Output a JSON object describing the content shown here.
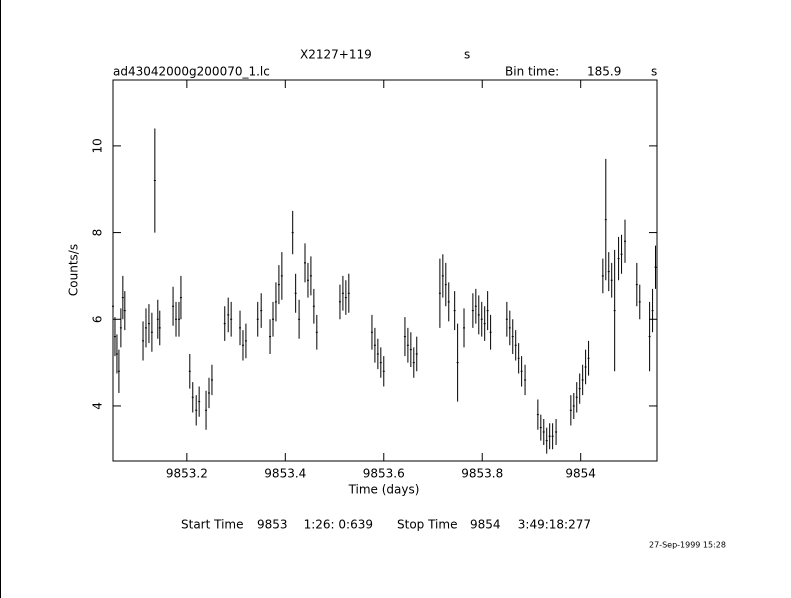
{
  "chart_data": {
    "type": "errorbar",
    "title": "X2127+119",
    "title_unit": "s",
    "subtitle": "ad43042000g200070_1.lc",
    "bin_time_label": "Bin time:",
    "bin_time": "185.9",
    "bin_time_unit": "s",
    "xlabel": "Time (days)",
    "ylabel": "Counts/s",
    "start_label": "Start Time",
    "start_day": "9853",
    "start_time": "1:26: 0:639",
    "stop_label": "Stop Time",
    "stop_day": "9854",
    "stop_time": "3:49:18:277",
    "date_stamp": "27-Sep-1999 15:28",
    "color": "#000000",
    "xlim": [
      9853.05,
      9854.155
    ],
    "ylim": [
      2.73,
      11.52
    ],
    "xticks": [
      9853.2,
      9853.4,
      9853.6,
      9853.8,
      9854
    ],
    "yticks": [
      4,
      6,
      8,
      10
    ],
    "x": [
      9853.05,
      9853.054,
      9853.058,
      9853.062,
      9853.066,
      9853.07,
      9853.074,
      9853.111,
      9853.117,
      9853.123,
      9853.129,
      9853.135,
      9853.141,
      9853.145,
      9853.172,
      9853.178,
      9853.184,
      9853.188,
      9853.206,
      9853.212,
      9853.219,
      9853.225,
      9853.239,
      9853.245,
      9853.251,
      9853.277,
      9853.284,
      9853.29,
      9853.308,
      9853.314,
      9853.32,
      9853.344,
      9853.351,
      9853.369,
      9853.375,
      9853.381,
      9853.387,
      9853.393,
      9853.415,
      9853.421,
      9853.428,
      9853.44,
      9853.446,
      9853.452,
      9853.458,
      9853.464,
      9853.511,
      9853.517,
      9853.523,
      9853.529,
      9853.576,
      9853.582,
      9853.588,
      9853.594,
      9853.6,
      9853.643,
      9853.649,
      9853.655,
      9853.661,
      9853.667,
      9853.714,
      9853.72,
      9853.726,
      9853.732,
      9853.744,
      9853.75,
      9853.763,
      9853.781,
      9853.787,
      9853.793,
      9853.799,
      9853.805,
      9853.811,
      9853.817,
      9853.85,
      9853.856,
      9853.862,
      9853.868,
      9853.874,
      9853.88,
      9853.887,
      9853.913,
      9853.919,
      9853.925,
      9853.931,
      9853.937,
      9853.943,
      9853.95,
      9853.98,
      9853.986,
      9853.992,
      9853.998,
      9854.004,
      9854.01,
      9854.016,
      9854.045,
      9854.051,
      9854.057,
      9854.063,
      9854.069,
      9854.077,
      9854.083,
      9854.09,
      9854.114,
      9854.12,
      9854.14,
      9854.146,
      9854.152
    ],
    "values": [
      6.3,
      5.6,
      5.2,
      4.8,
      5.8,
      6.5,
      6.2,
      5.5,
      5.8,
      5.9,
      5.7,
      9.2,
      6.0,
      5.8,
      6.3,
      6.0,
      6.0,
      6.5,
      4.8,
      4.2,
      3.9,
      4.1,
      3.9,
      4.3,
      4.6,
      5.9,
      6.1,
      6.0,
      5.8,
      5.4,
      5.5,
      6.0,
      6.2,
      5.6,
      6.0,
      6.4,
      6.8,
      7.0,
      8.0,
      6.6,
      6.0,
      7.3,
      6.9,
      7.0,
      6.3,
      5.7,
      6.4,
      6.6,
      6.5,
      6.6,
      5.7,
      5.4,
      5.2,
      5.0,
      4.8,
      5.6,
      5.4,
      5.3,
      5.0,
      5.2,
      6.6,
      7.0,
      6.8,
      6.4,
      6.2,
      5.0,
      5.8,
      6.2,
      6.3,
      6.1,
      6.0,
      5.9,
      6.2,
      5.7,
      6.0,
      5.8,
      5.6,
      5.4,
      5.1,
      4.8,
      4.6,
      3.8,
      3.5,
      3.4,
      3.2,
      3.3,
      3.3,
      3.4,
      3.9,
      4.0,
      4.2,
      4.4,
      4.6,
      4.9,
      5.1,
      7.0,
      8.3,
      7.1,
      6.9,
      6.2,
      7.4,
      7.5,
      7.8,
      6.8,
      6.4,
      5.6,
      6.2,
      7.2
    ],
    "errors": [
      0.5,
      0.45,
      0.45,
      0.5,
      0.45,
      0.5,
      0.45,
      0.45,
      0.45,
      0.45,
      0.45,
      1.2,
      0.45,
      0.4,
      0.45,
      0.4,
      0.4,
      0.5,
      0.4,
      0.35,
      0.35,
      0.35,
      0.45,
      0.35,
      0.35,
      0.4,
      0.4,
      0.4,
      0.4,
      0.35,
      0.4,
      0.4,
      0.4,
      0.4,
      0.4,
      0.45,
      0.45,
      0.55,
      0.5,
      0.45,
      0.45,
      0.45,
      0.4,
      0.45,
      0.4,
      0.4,
      0.4,
      0.4,
      0.4,
      0.45,
      0.4,
      0.4,
      0.35,
      0.35,
      0.35,
      0.45,
      0.4,
      0.4,
      0.35,
      0.4,
      0.8,
      0.5,
      0.5,
      0.45,
      0.45,
      0.9,
      0.45,
      0.4,
      0.4,
      0.45,
      0.4,
      0.4,
      0.45,
      0.4,
      0.4,
      0.4,
      0.4,
      0.35,
      0.35,
      0.35,
      0.35,
      0.35,
      0.3,
      0.3,
      0.3,
      0.3,
      0.3,
      0.3,
      0.35,
      0.3,
      0.35,
      0.35,
      0.35,
      0.4,
      0.4,
      0.4,
      1.4,
      0.45,
      0.4,
      1.4,
      0.5,
      0.45,
      0.5,
      0.5,
      0.4,
      0.8,
      0.5,
      0.5
    ]
  }
}
